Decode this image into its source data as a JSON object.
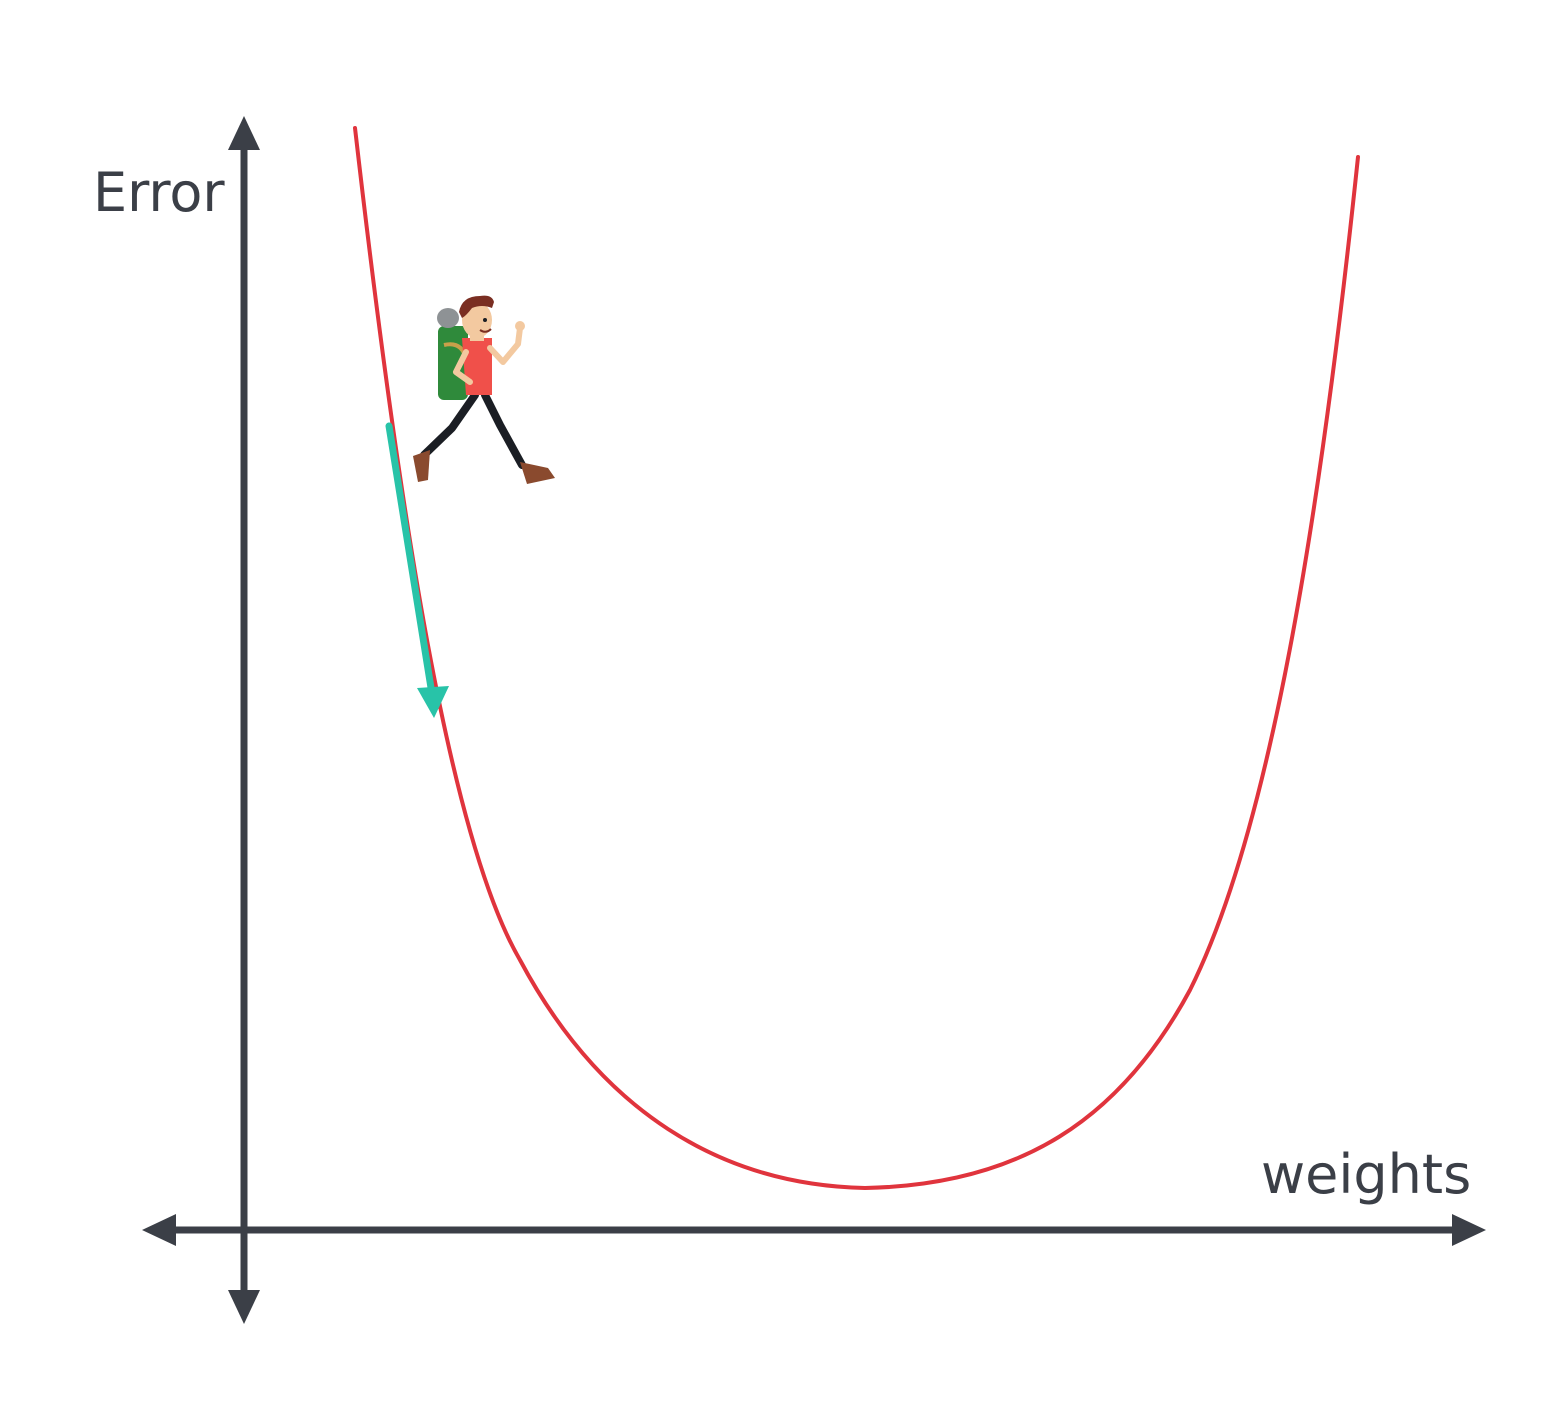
{
  "diagram": {
    "y_axis_label": "Error",
    "x_axis_label": "weights",
    "colors": {
      "axis": "#3b3f47",
      "error_curve": "#e0343d",
      "gradient_arrow": "#28c3a8",
      "hiker_shirt": "#f0504a",
      "hiker_backpack": "#2f8a3b",
      "hiker_hair": "#7a2e22",
      "hiker_skin": "#f3c9a0",
      "hiker_shoes": "#8a4a2e"
    },
    "elements": [
      "error-curve",
      "gradient-descent-arrow",
      "hiker-icon"
    ]
  }
}
